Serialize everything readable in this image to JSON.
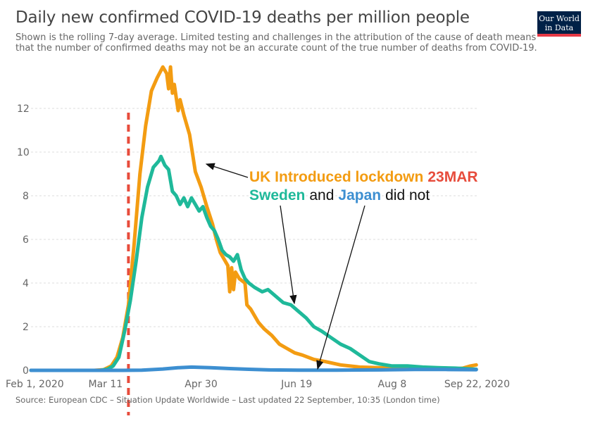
{
  "title": "Daily new confirmed COVID-19 deaths per million people",
  "subtitle_line1": "Shown is the rolling 7-day average. Limited testing and challenges in the attribution of the cause of death means",
  "subtitle_line2": "that the number of confirmed deaths may not be an accurate count of the true number of deaths from COVID-19.",
  "logo": {
    "line1": "Our World",
    "line2": "in Data"
  },
  "source": "Source: European CDC – Situation Update Worldwide – Last updated 22 September, 10:35 (London time)",
  "annotation": {
    "line1_orange": "UK Introduced lockdown",
    "line1_red": "23MAR",
    "line2_sweden": "Sweden",
    "line2_and": "and",
    "line2_japan": "Japan",
    "line2_rest": "did not"
  },
  "chart_data": {
    "type": "line",
    "title": "Daily new confirmed COVID-19 deaths per million people",
    "xlabel": "",
    "ylabel": "",
    "x_ticks": [
      "Feb 1, 2020",
      "Mar 11",
      "Apr 30",
      "Jun 19",
      "Aug 8",
      "Sep 22, 2020"
    ],
    "y_ticks": [
      "0",
      "2",
      "4",
      "6",
      "8",
      "10",
      "12"
    ],
    "ylim": [
      0,
      14
    ],
    "grid": "horizontal dashed",
    "vertical_marker": {
      "date": "2020-03-23",
      "label": "23MAR",
      "color": "#e74c3c"
    },
    "series": [
      {
        "name": "United Kingdom",
        "color": "#f39c12",
        "points": [
          [
            "2020-02-01",
            0
          ],
          [
            "2020-03-05",
            0
          ],
          [
            "2020-03-10",
            0.03
          ],
          [
            "2020-03-14",
            0.2
          ],
          [
            "2020-03-17",
            0.6
          ],
          [
            "2020-03-20",
            1.5
          ],
          [
            "2020-03-23",
            3.0
          ],
          [
            "2020-03-26",
            5.8
          ],
          [
            "2020-03-29",
            9.0
          ],
          [
            "2020-04-01",
            11.2
          ],
          [
            "2020-04-04",
            12.8
          ],
          [
            "2020-04-07",
            13.4
          ],
          [
            "2020-04-10",
            13.9
          ],
          [
            "2020-04-12",
            13.6
          ],
          [
            "2020-04-13",
            12.9
          ],
          [
            "2020-04-14",
            13.9
          ],
          [
            "2020-04-15",
            12.7
          ],
          [
            "2020-04-16",
            13.1
          ],
          [
            "2020-04-17",
            12.5
          ],
          [
            "2020-04-18",
            11.9
          ],
          [
            "2020-04-19",
            12.4
          ],
          [
            "2020-04-21",
            11.7
          ],
          [
            "2020-04-24",
            10.8
          ],
          [
            "2020-04-27",
            9.1
          ],
          [
            "2020-04-30",
            8.4
          ],
          [
            "2020-05-03",
            7.5
          ],
          [
            "2020-05-06",
            6.7
          ],
          [
            "2020-05-08",
            6.0
          ],
          [
            "2020-05-10",
            5.4
          ],
          [
            "2020-05-12",
            5.1
          ],
          [
            "2020-05-14",
            4.8
          ],
          [
            "2020-05-15",
            3.6
          ],
          [
            "2020-05-16",
            4.7
          ],
          [
            "2020-05-17",
            3.7
          ],
          [
            "2020-05-18",
            4.5
          ],
          [
            "2020-05-20",
            4.2
          ],
          [
            "2020-05-23",
            4.0
          ],
          [
            "2020-05-24",
            3.0
          ],
          [
            "2020-05-26",
            2.8
          ],
          [
            "2020-05-28",
            2.5
          ],
          [
            "2020-05-30",
            2.2
          ],
          [
            "2020-06-02",
            1.9
          ],
          [
            "2020-06-06",
            1.6
          ],
          [
            "2020-06-10",
            1.2
          ],
          [
            "2020-06-14",
            1.0
          ],
          [
            "2020-06-18",
            0.8
          ],
          [
            "2020-06-22",
            0.7
          ],
          [
            "2020-06-28",
            0.5
          ],
          [
            "2020-07-04",
            0.4
          ],
          [
            "2020-07-12",
            0.25
          ],
          [
            "2020-07-22",
            0.15
          ],
          [
            "2020-08-01",
            0.12
          ],
          [
            "2020-08-12",
            0.1
          ],
          [
            "2020-08-22",
            0.08
          ],
          [
            "2020-09-01",
            0.07
          ],
          [
            "2020-09-08",
            0.05
          ],
          [
            "2020-09-14",
            0.1
          ],
          [
            "2020-09-18",
            0.2
          ],
          [
            "2020-09-21",
            0.25
          ]
        ]
      },
      {
        "name": "Sweden",
        "color": "#1fb99a",
        "points": [
          [
            "2020-02-01",
            0
          ],
          [
            "2020-03-08",
            0
          ],
          [
            "2020-03-12",
            0.05
          ],
          [
            "2020-03-15",
            0.2
          ],
          [
            "2020-03-18",
            0.6
          ],
          [
            "2020-03-21",
            1.8
          ],
          [
            "2020-03-24",
            3.2
          ],
          [
            "2020-03-27",
            5.0
          ],
          [
            "2020-03-30",
            7.0
          ],
          [
            "2020-04-02",
            8.4
          ],
          [
            "2020-04-05",
            9.3
          ],
          [
            "2020-04-08",
            9.6
          ],
          [
            "2020-04-09",
            9.8
          ],
          [
            "2020-04-11",
            9.4
          ],
          [
            "2020-04-13",
            9.2
          ],
          [
            "2020-04-15",
            8.2
          ],
          [
            "2020-04-17",
            8.0
          ],
          [
            "2020-04-19",
            7.6
          ],
          [
            "2020-04-21",
            7.9
          ],
          [
            "2020-04-23",
            7.5
          ],
          [
            "2020-04-25",
            7.9
          ],
          [
            "2020-04-27",
            7.6
          ],
          [
            "2020-04-29",
            7.3
          ],
          [
            "2020-05-01",
            7.5
          ],
          [
            "2020-05-03",
            7.0
          ],
          [
            "2020-05-05",
            6.6
          ],
          [
            "2020-05-07",
            6.4
          ],
          [
            "2020-05-09",
            6.0
          ],
          [
            "2020-05-11",
            5.5
          ],
          [
            "2020-05-13",
            5.3
          ],
          [
            "2020-05-15",
            5.2
          ],
          [
            "2020-05-17",
            5.0
          ],
          [
            "2020-05-19",
            5.3
          ],
          [
            "2020-05-21",
            4.6
          ],
          [
            "2020-05-23",
            4.2
          ],
          [
            "2020-05-25",
            4.0
          ],
          [
            "2020-05-28",
            3.8
          ],
          [
            "2020-06-01",
            3.6
          ],
          [
            "2020-06-04",
            3.7
          ],
          [
            "2020-06-08",
            3.4
          ],
          [
            "2020-06-12",
            3.1
          ],
          [
            "2020-06-16",
            3.0
          ],
          [
            "2020-06-20",
            2.7
          ],
          [
            "2020-06-24",
            2.4
          ],
          [
            "2020-06-28",
            2.0
          ],
          [
            "2020-07-02",
            1.8
          ],
          [
            "2020-07-07",
            1.5
          ],
          [
            "2020-07-12",
            1.2
          ],
          [
            "2020-07-17",
            1.0
          ],
          [
            "2020-07-22",
            0.7
          ],
          [
            "2020-07-27",
            0.4
          ],
          [
            "2020-08-01",
            0.3
          ],
          [
            "2020-08-08",
            0.2
          ],
          [
            "2020-08-16",
            0.2
          ],
          [
            "2020-08-24",
            0.15
          ],
          [
            "2020-09-01",
            0.12
          ],
          [
            "2020-09-10",
            0.1
          ],
          [
            "2020-09-21",
            0.05
          ]
        ]
      },
      {
        "name": "Japan",
        "color": "#3d8fd1",
        "points": [
          [
            "2020-02-01",
            0
          ],
          [
            "2020-03-20",
            0
          ],
          [
            "2020-03-30",
            0.01
          ],
          [
            "2020-04-10",
            0.06
          ],
          [
            "2020-04-18",
            0.12
          ],
          [
            "2020-04-25",
            0.15
          ],
          [
            "2020-05-05",
            0.12
          ],
          [
            "2020-05-15",
            0.08
          ],
          [
            "2020-05-25",
            0.05
          ],
          [
            "2020-06-05",
            0.02
          ],
          [
            "2020-06-20",
            0.01
          ],
          [
            "2020-07-10",
            0.01
          ],
          [
            "2020-08-01",
            0.02
          ],
          [
            "2020-08-20",
            0.04
          ],
          [
            "2020-09-05",
            0.04
          ],
          [
            "2020-09-21",
            0.03
          ]
        ]
      }
    ]
  }
}
